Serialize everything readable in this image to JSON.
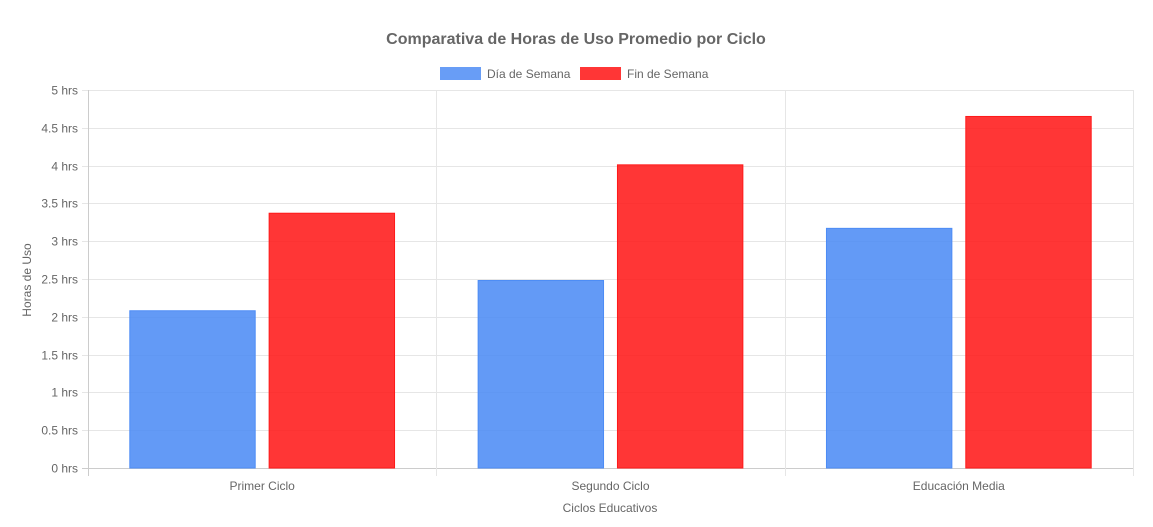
{
  "chart_data": {
    "type": "bar",
    "title": "Comparativa de Horas de Uso Promedio por Ciclo",
    "xlabel": "Ciclos Educativos",
    "ylabel": "Horas de Uso",
    "categories": [
      "Primer Ciclo",
      "Segundo Ciclo",
      "Educación Media"
    ],
    "series": [
      {
        "name": "Día de Semana",
        "values": [
          2.08,
          2.48,
          3.17
        ],
        "color": "#4d8cf5"
      },
      {
        "name": "Fin de Semana",
        "values": [
          3.37,
          4.01,
          4.65
        ],
        "color": "#ff1a1a"
      }
    ],
    "ylim": [
      0,
      5
    ],
    "ytick_step": 0.5,
    "y_ticks": [
      "0 hrs",
      "0.5 hrs",
      "1 hrs",
      "1.5 hrs",
      "2 hrs",
      "2.5 hrs",
      "3 hrs",
      "3.5 hrs",
      "4 hrs",
      "4.5 hrs",
      "5 hrs"
    ],
    "grid": true,
    "legend_position": "top"
  }
}
